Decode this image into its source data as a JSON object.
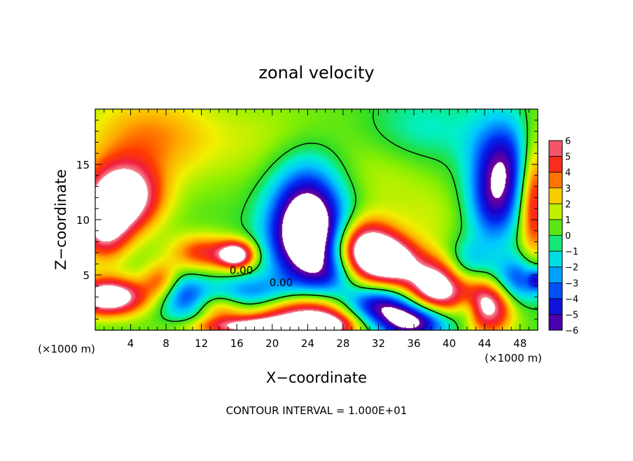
{
  "chart_data": {
    "type": "heatmap",
    "title": "zonal velocity",
    "xlabel": "X−coordinate",
    "ylabel": "Z−coordinate",
    "x_unit_label": "(×1000 m)",
    "y_unit_label": "(×1000 m)",
    "xlim": [
      0,
      50
    ],
    "ylim": [
      0,
      20
    ],
    "x_ticks": [
      4,
      8,
      12,
      16,
      20,
      24,
      28,
      32,
      36,
      40,
      44,
      48
    ],
    "y_ticks": [
      5,
      10,
      15
    ],
    "colorbar": {
      "range": [
        -6,
        6
      ],
      "ticks": [
        6,
        5,
        4,
        3,
        2,
        1,
        0,
        -1,
        -2,
        -3,
        -4,
        -5,
        -6
      ],
      "tick_labels": [
        "6",
        "5",
        "4",
        "3",
        "2",
        "1",
        "0",
        "−1",
        "−2",
        "−3",
        "−4",
        "−5",
        "−6"
      ],
      "out_of_range_color": "#ffffff"
    },
    "contour_labels": [
      {
        "text": "0.00",
        "x": 16.5,
        "y": 5.1
      },
      {
        "text": "0.00",
        "x": 21.0,
        "y": 4.0
      }
    ],
    "features": [
      {
        "x": 3.0,
        "y": 12.0,
        "sx": 3.0,
        "sy": 2.2,
        "v": 8.0
      },
      {
        "x": 1.0,
        "y": 9.0,
        "sx": 2.0,
        "sy": 2.0,
        "v": 5.0
      },
      {
        "x": 6.0,
        "y": 17.5,
        "sx": 5.5,
        "sy": 3.0,
        "v": 3.0
      },
      {
        "x": 1.5,
        "y": 3.0,
        "sx": 3.0,
        "sy": 1.2,
        "v": 8.0
      },
      {
        "x": 12.0,
        "y": 7.0,
        "sx": 2.5,
        "sy": 1.2,
        "v": 4.0
      },
      {
        "x": 16.0,
        "y": 6.8,
        "sx": 1.5,
        "sy": 0.9,
        "v": 7.0
      },
      {
        "x": 7.5,
        "y": 4.5,
        "sx": 1.5,
        "sy": 1.2,
        "v": 3.5
      },
      {
        "x": 24.0,
        "y": 8.5,
        "sx": 3.0,
        "sy": 3.0,
        "v": -9.0
      },
      {
        "x": 24.0,
        "y": 13.0,
        "sx": 3.0,
        "sy": 3.0,
        "v": -3.0
      },
      {
        "x": 10.0,
        "y": 3.0,
        "sx": 2.0,
        "sy": 1.5,
        "v": -4.0
      },
      {
        "x": 17.5,
        "y": 3.2,
        "sx": 3.5,
        "sy": 1.2,
        "v": -4.0
      },
      {
        "x": 14.0,
        "y": 2.0,
        "sx": 2.0,
        "sy": 1.0,
        "v": 3.0
      },
      {
        "x": 30.5,
        "y": 7.0,
        "sx": 2.5,
        "sy": 2.0,
        "v": 9.0
      },
      {
        "x": 34.0,
        "y": 6.2,
        "sx": 2.0,
        "sy": 1.5,
        "v": 5.0
      },
      {
        "x": 27.0,
        "y": 5.0,
        "sx": 2.5,
        "sy": 1.5,
        "v": -3.0
      },
      {
        "x": 31.5,
        "y": 2.3,
        "sx": 3.0,
        "sy": 1.2,
        "v": -6.5
      },
      {
        "x": 24.0,
        "y": 1.3,
        "sx": 5.0,
        "sy": 1.5,
        "v": 7.0
      },
      {
        "x": 18.0,
        "y": 0.3,
        "sx": 5.0,
        "sy": 0.6,
        "v": 5.0
      },
      {
        "x": 38.5,
        "y": 3.8,
        "sx": 2.5,
        "sy": 2.0,
        "v": 8.0
      },
      {
        "x": 36.0,
        "y": 0.8,
        "sx": 3.0,
        "sy": 1.2,
        "v": -8.0
      },
      {
        "x": 44.5,
        "y": 2.5,
        "sx": 2.0,
        "sy": 2.0,
        "v": 7.0
      },
      {
        "x": 42.0,
        "y": 2.0,
        "sx": 1.0,
        "sy": 1.0,
        "v": -2.0
      },
      {
        "x": 47.5,
        "y": 4.5,
        "sx": 2.5,
        "sy": 1.5,
        "v": -5.0
      },
      {
        "x": 49.8,
        "y": 4.5,
        "sx": 0.6,
        "sy": 0.6,
        "v": -3.0
      },
      {
        "x": 46.0,
        "y": 15.0,
        "sx": 2.5,
        "sy": 3.0,
        "v": -5.5
      },
      {
        "x": 45.0,
        "y": 11.0,
        "sx": 2.0,
        "sy": 2.5,
        "v": -3.5
      },
      {
        "x": 49.5,
        "y": 12.0,
        "sx": 1.2,
        "sy": 4.0,
        "v": 5.5
      },
      {
        "x": 42.0,
        "y": 6.0,
        "sx": 2.0,
        "sy": 1.5,
        "v": -3.0
      },
      {
        "x": 37.0,
        "y": 18.0,
        "sx": 4.5,
        "sy": 2.5,
        "v": -1.5
      },
      {
        "x": 21.0,
        "y": 17.0,
        "sx": 6.0,
        "sy": 3.0,
        "v": 1.2
      },
      {
        "x": 33.0,
        "y": 14.0,
        "sx": 5.0,
        "sy": 2.5,
        "v": 1.2
      },
      {
        "x": 38.0,
        "y": 10.0,
        "sx": 3.0,
        "sy": 2.0,
        "v": 1.0
      },
      {
        "x": 26.0,
        "y": 0.3,
        "sx": 2.0,
        "sy": 0.8,
        "v": 3.0
      }
    ],
    "note": "CONTOUR INTERVAL = 1.000E+01"
  }
}
